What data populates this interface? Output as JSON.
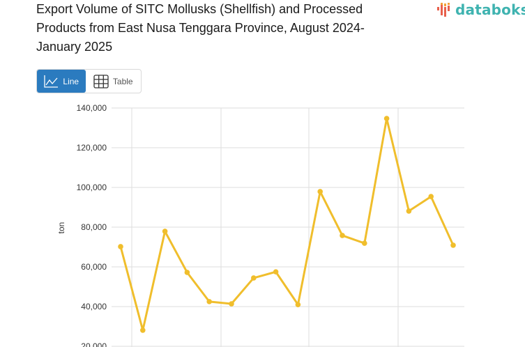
{
  "header": {
    "title": "Export Volume of SITC Mollusks (Shellfish) and Processed Products from East Nusa Tenggara Province, August 2024-January 2025",
    "title_lines": [
      "Export Volume of SITC Mollusks (Shellfish) and Processed",
      "Products from East Nusa Tenggara Province, August 2024-",
      "January 2025"
    ],
    "logo_text": "databoks"
  },
  "view_toggle": {
    "line_label": "Line",
    "table_label": "Table",
    "active": "Line",
    "line_icon": "line-chart-icon",
    "table_icon": "table-grid-icon"
  },
  "colors": {
    "series": "#F0BE2C",
    "active_button": "#2B7BBF",
    "logo_text": "#3FB3B0",
    "gridline": "#DDDDDD"
  },
  "chart_data": {
    "type": "line",
    "title": "Export Volume of SITC Mollusks (Shellfish) and Processed Products from East Nusa Tenggara Province, August 2024-January 2025",
    "xlabel": "",
    "ylabel": "ton",
    "ylim": [
      20000,
      140000
    ],
    "yticks": [
      20000,
      40000,
      60000,
      80000,
      100000,
      120000,
      140000
    ],
    "ytick_labels": [
      "20,000",
      "40,000",
      "60,000",
      "80,000",
      "100,000",
      "120,000",
      "140,000"
    ],
    "grid": true,
    "legend": null,
    "series": [
      {
        "name": "Export Volume",
        "color": "#F0BE2C",
        "values": [
          70200,
          28100,
          77900,
          57200,
          42500,
          41400,
          54400,
          57500,
          41000,
          97900,
          75800,
          71900,
          134700,
          88100,
          95400,
          70900
        ]
      }
    ]
  }
}
